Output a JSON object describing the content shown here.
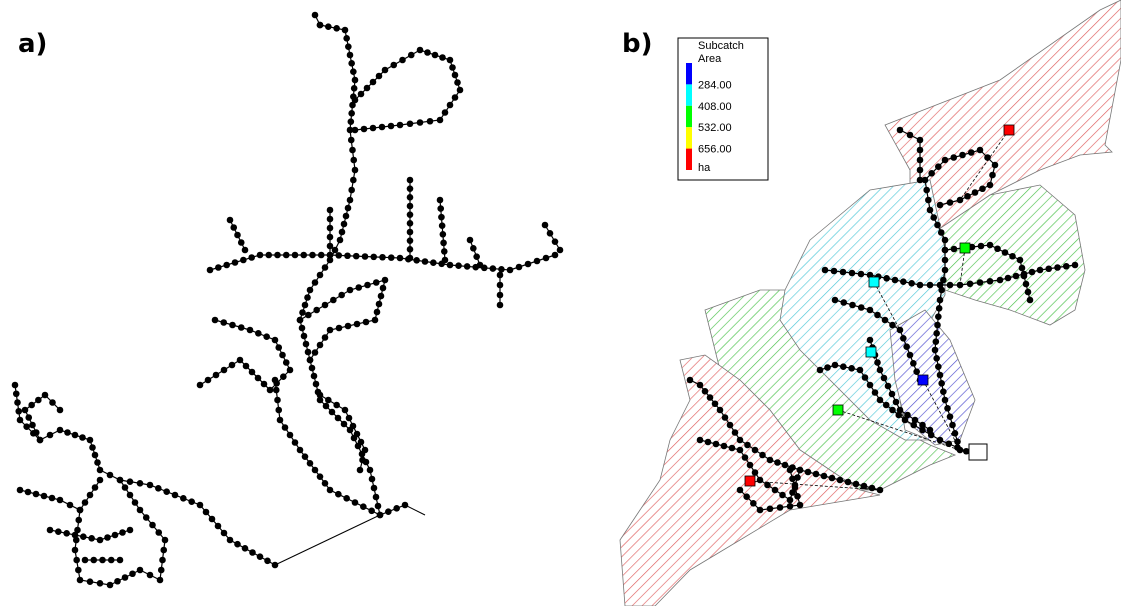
{
  "panels": [
    {
      "label": "a)"
    },
    {
      "label": "b)"
    }
  ],
  "legend": {
    "title": "Subcatch",
    "subtitle": "Area",
    "breaks": [
      "284.00",
      "408.00",
      "532.00",
      "656.00"
    ],
    "unit": "ha",
    "colors": [
      "#0000ff",
      "#00ffff",
      "#00ff00",
      "#ffff00",
      "#ff0000"
    ]
  }
}
